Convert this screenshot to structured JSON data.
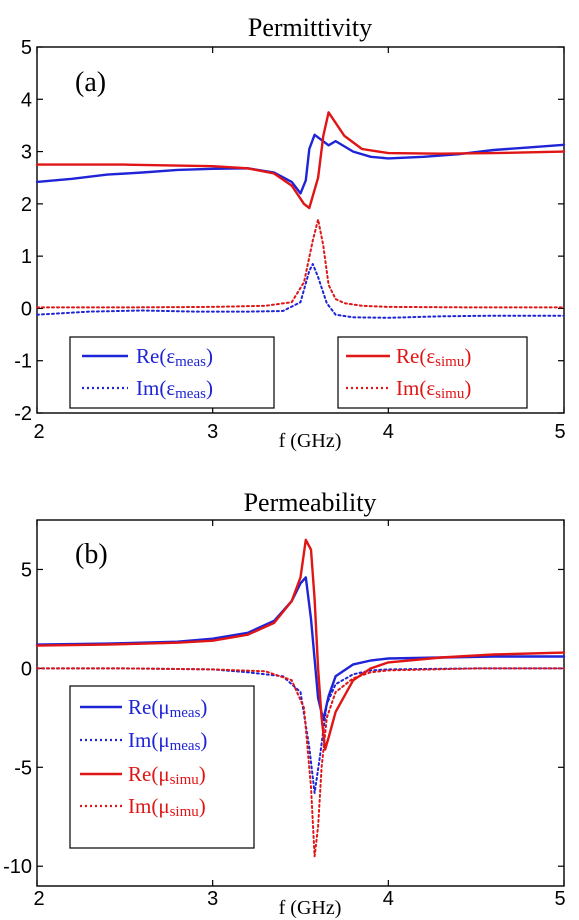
{
  "chart_data": [
    {
      "type": "line",
      "title": "Permittivity",
      "panel_label": "(a)",
      "xlabel": "f (GHz)",
      "ylabel": "",
      "xlim": [
        2,
        5
      ],
      "ylim": [
        -2,
        5
      ],
      "xticks": [
        "2",
        "3",
        "4",
        "5"
      ],
      "yticks": [
        "-2",
        "-1",
        "0",
        "1",
        "2",
        "3",
        "4",
        "5"
      ],
      "grid": false,
      "legend_placement": "bottom-left and bottom-right",
      "series": [
        {
          "name": "Re(ε",
          "sub": "meas",
          "color": "#1f24d6",
          "style": "solid",
          "x": [
            2.0,
            2.2,
            2.4,
            2.6,
            2.8,
            3.0,
            3.2,
            3.35,
            3.45,
            3.5,
            3.53,
            3.55,
            3.58,
            3.62,
            3.66,
            3.7,
            3.8,
            3.9,
            4.0,
            4.2,
            4.4,
            4.6,
            4.8,
            5.0
          ],
          "y": [
            2.42,
            2.48,
            2.56,
            2.6,
            2.65,
            2.67,
            2.68,
            2.6,
            2.42,
            2.2,
            2.45,
            3.05,
            3.32,
            3.22,
            3.12,
            3.2,
            3.0,
            2.9,
            2.87,
            2.9,
            2.95,
            3.03,
            3.08,
            3.13
          ]
        },
        {
          "name": "Im(ε",
          "sub": "meas",
          "color": "#1f24d6",
          "style": "dotted",
          "x": [
            2.0,
            2.3,
            2.6,
            2.9,
            3.2,
            3.4,
            3.5,
            3.55,
            3.57,
            3.6,
            3.65,
            3.7,
            3.8,
            4.0,
            4.3,
            4.6,
            5.0
          ],
          "y": [
            -0.12,
            -0.06,
            -0.04,
            -0.06,
            -0.06,
            -0.05,
            0.12,
            0.72,
            0.85,
            0.6,
            0.1,
            -0.12,
            -0.17,
            -0.18,
            -0.15,
            -0.14,
            -0.14
          ]
        },
        {
          "name": "Re(ε",
          "sub": "simu",
          "color": "#e01515",
          "style": "solid",
          "x": [
            2.0,
            2.5,
            3.0,
            3.2,
            3.35,
            3.45,
            3.52,
            3.55,
            3.6,
            3.63,
            3.66,
            3.7,
            3.75,
            3.85,
            4.0,
            4.3,
            4.6,
            5.0
          ],
          "y": [
            2.75,
            2.75,
            2.72,
            2.68,
            2.58,
            2.35,
            2.0,
            1.92,
            2.5,
            3.3,
            3.75,
            3.55,
            3.3,
            3.05,
            2.97,
            2.96,
            2.97,
            3.0
          ]
        },
        {
          "name": "Im(ε",
          "sub": "simu",
          "color": "#e01515",
          "style": "dotted",
          "x": [
            2.0,
            2.5,
            3.0,
            3.3,
            3.45,
            3.52,
            3.57,
            3.6,
            3.63,
            3.66,
            3.7,
            3.75,
            3.85,
            4.0,
            4.5,
            5.0
          ],
          "y": [
            0.02,
            0.02,
            0.03,
            0.05,
            0.12,
            0.5,
            1.3,
            1.7,
            1.2,
            0.45,
            0.18,
            0.1,
            0.05,
            0.03,
            0.02,
            0.02
          ]
        }
      ]
    },
    {
      "type": "line",
      "title": "Permeability",
      "panel_label": "(b)",
      "xlabel": "f (GHz)",
      "ylabel": "",
      "xlim": [
        2,
        5
      ],
      "ylim": [
        -11,
        7.5
      ],
      "xticks": [
        "2",
        "3",
        "4",
        "5"
      ],
      "yticks": [
        "-10",
        "-5",
        "0",
        "5"
      ],
      "grid": false,
      "legend_placement": "bottom-left",
      "series": [
        {
          "name": "Re(μ",
          "sub": "meas",
          "color": "#1f24d6",
          "style": "solid",
          "x": [
            2.0,
            2.4,
            2.8,
            3.0,
            3.2,
            3.35,
            3.45,
            3.5,
            3.53,
            3.56,
            3.6,
            3.63,
            3.66,
            3.7,
            3.8,
            3.9,
            4.0,
            4.3,
            4.6,
            5.0
          ],
          "y": [
            1.2,
            1.25,
            1.35,
            1.5,
            1.8,
            2.4,
            3.4,
            4.3,
            4.6,
            2.5,
            -1.5,
            -2.6,
            -1.4,
            -0.4,
            0.2,
            0.4,
            0.5,
            0.55,
            0.6,
            0.6
          ]
        },
        {
          "name": "Im(μ",
          "sub": "meas",
          "color": "#1f24d6",
          "style": "dotted",
          "x": [
            2.0,
            2.5,
            3.0,
            3.2,
            3.4,
            3.5,
            3.55,
            3.58,
            3.61,
            3.65,
            3.7,
            3.8,
            3.9,
            4.0,
            4.5,
            5.0
          ],
          "y": [
            0.0,
            0.0,
            -0.05,
            -0.2,
            -0.4,
            -1.2,
            -4.0,
            -6.3,
            -4.5,
            -1.8,
            -0.8,
            -0.3,
            -0.1,
            -0.05,
            0.0,
            0.0
          ]
        },
        {
          "name": "Re(μ",
          "sub": "simu",
          "color": "#e01515",
          "style": "solid",
          "x": [
            2.0,
            2.4,
            2.8,
            3.0,
            3.2,
            3.35,
            3.45,
            3.5,
            3.53,
            3.56,
            3.58,
            3.6,
            3.62,
            3.64,
            3.66,
            3.7,
            3.8,
            3.9,
            4.0,
            4.3,
            4.6,
            5.0
          ],
          "y": [
            1.15,
            1.2,
            1.3,
            1.4,
            1.7,
            2.3,
            3.4,
            4.6,
            6.5,
            6.0,
            3.5,
            0.0,
            -2.5,
            -4.1,
            -3.5,
            -2.2,
            -0.6,
            0.0,
            0.3,
            0.55,
            0.7,
            0.8
          ]
        },
        {
          "name": "Im(μ",
          "sub": "simu",
          "color": "#e01515",
          "style": "dotted",
          "x": [
            2.0,
            2.5,
            3.0,
            3.3,
            3.45,
            3.52,
            3.56,
            3.58,
            3.6,
            3.62,
            3.65,
            3.7,
            3.8,
            3.9,
            4.0,
            4.5,
            5.0
          ],
          "y": [
            0.0,
            0.0,
            -0.05,
            -0.15,
            -0.6,
            -2.0,
            -6.0,
            -9.5,
            -8.0,
            -5.0,
            -2.5,
            -1.2,
            -0.5,
            -0.2,
            -0.1,
            0.0,
            0.0
          ]
        }
      ]
    }
  ]
}
